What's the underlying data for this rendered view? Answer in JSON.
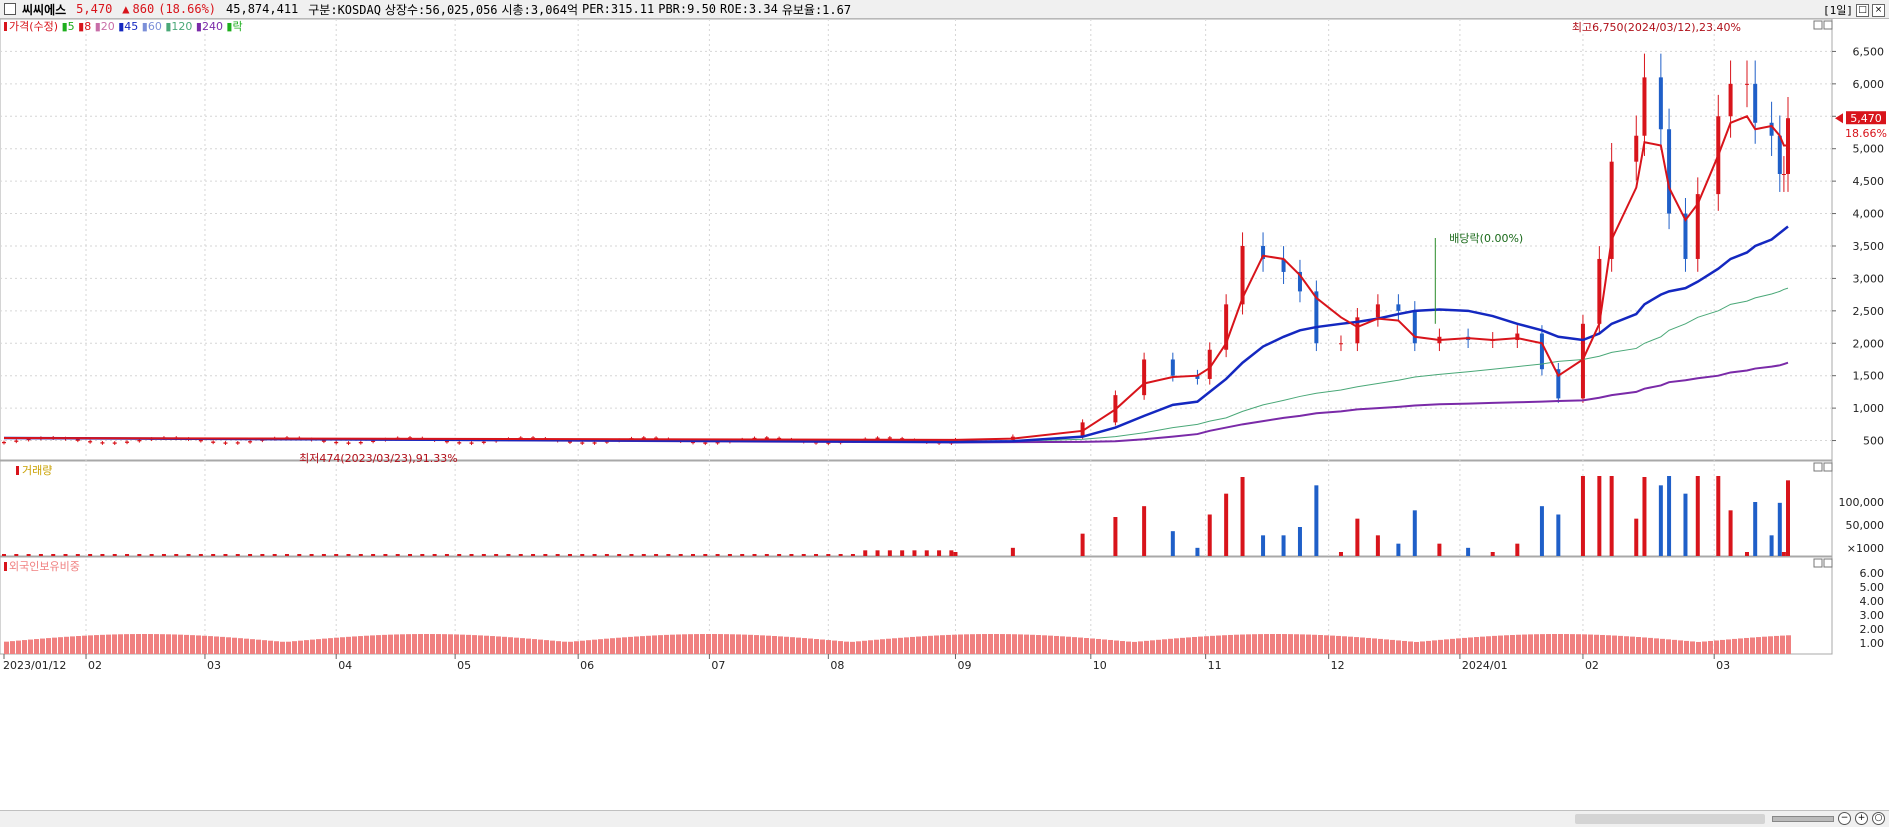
{
  "header": {
    "stock_name": "씨씨에스",
    "price": "5,470",
    "change_arrow": "▲",
    "change": "860",
    "change_pct": "(18.66%)",
    "volume": "45,874,411",
    "market": "구분:KOSDAQ",
    "listed_shares": "상장수:56,025,056",
    "market_cap": "시총:3,064억",
    "per": "PER:315.11",
    "pbr": "PBR:9.50",
    "roe": "ROE:3.34",
    "float_ratio": "유보율:1.67",
    "period_label": "[1일]"
  },
  "colors": {
    "up": "#d8141b",
    "down": "#1f5fc8",
    "ma5": "#1dae1d",
    "ma8": "#d8141b",
    "ma20": "#c86ea8",
    "ma45": "#1428c0",
    "ma60": "#7b8fd8",
    "ma120": "#4aa878",
    "ma240": "#7a2aa8",
    "foreign": "#f08080",
    "grid": "#d6d6d6"
  },
  "chart_data": [
    {
      "type": "candlestick",
      "title": "가격(수정)",
      "legend": [
        {
          "name": "가격(수정)",
          "color": "#d8141b"
        },
        {
          "name": "5",
          "color": "#1dae1d"
        },
        {
          "name": "8",
          "color": "#d8141b"
        },
        {
          "name": "20",
          "color": "#c86ea8"
        },
        {
          "name": "45",
          "color": "#1428c0"
        },
        {
          "name": "60",
          "color": "#7b8fd8"
        },
        {
          "name": "120",
          "color": "#4aa878"
        },
        {
          "name": "240",
          "color": "#7a2aa8"
        },
        {
          "name": "락",
          "color": "#1dae1d"
        }
      ],
      "ylim": [
        200,
        7000
      ],
      "yticks": [
        500,
        1000,
        1500,
        2000,
        2500,
        3000,
        3500,
        4000,
        4500,
        5000,
        5500,
        6000,
        6500
      ],
      "ytick_labels": [
        "500",
        "1,000",
        "1,500",
        "2,000",
        "2,500",
        "3,000",
        "3,500",
        "4,000",
        "4,500",
        "5,000",
        "5,500",
        "6,000",
        "6,500"
      ],
      "current_price": 5470,
      "current_price_label": "5,470",
      "current_change_label": "18.66%",
      "x": [
        "2023-09-01",
        "2023-09-15",
        "2023-10-02",
        "2023-10-10",
        "2023-10-17",
        "2023-10-24",
        "2023-10-30",
        "2023-11-02",
        "2023-11-06",
        "2023-11-10",
        "2023-11-15",
        "2023-11-20",
        "2023-11-24",
        "2023-11-28",
        "2023-12-04",
        "2023-12-08",
        "2023-12-13",
        "2023-12-18",
        "2023-12-22",
        "2023-12-28",
        "2024-01-04",
        "2024-01-10",
        "2024-01-16",
        "2024-01-22",
        "2024-01-26",
        "2024-02-01",
        "2024-02-05",
        "2024-02-08",
        "2024-02-14",
        "2024-02-16",
        "2024-02-20",
        "2024-02-22",
        "2024-02-26",
        "2024-02-29",
        "2024-03-05",
        "2024-03-08",
        "2024-03-12",
        "2024-03-14",
        "2024-03-18",
        "2024-03-20",
        "2024-03-21",
        "2024-03-22"
      ],
      "close": [
        510,
        560,
        780,
        1200,
        1750,
        1500,
        1450,
        1900,
        2600,
        3500,
        3300,
        3100,
        2800,
        2000,
        2000,
        2400,
        2600,
        2500,
        2000,
        2100,
        2050,
        2050,
        2150,
        1600,
        1150,
        2300,
        3300,
        4800,
        5200,
        6100,
        5300,
        4000,
        3300,
        4300,
        5500,
        6000,
        6000,
        5400,
        5200,
        4610,
        4610,
        5470
      ],
      "ma8": [
        510,
        530,
        650,
        980,
        1380,
        1480,
        1500,
        1620,
        2000,
        2700,
        3350,
        3300,
        3050,
        2700,
        2400,
        2250,
        2380,
        2350,
        2100,
        2050,
        2080,
        2050,
        2080,
        2000,
        1500,
        1750,
        2300,
        3600,
        4400,
        5100,
        5050,
        4400,
        3900,
        4150,
        4900,
        5400,
        5500,
        5300,
        5350,
        5200,
        5050,
        5050
      ],
      "ma45": [
        480,
        490,
        560,
        700,
        880,
        1050,
        1100,
        1250,
        1450,
        1700,
        1950,
        2100,
        2200,
        2250,
        2300,
        2330,
        2380,
        2450,
        2500,
        2520,
        2500,
        2420,
        2300,
        2200,
        2100,
        2050,
        2150,
        2300,
        2450,
        2600,
        2750,
        2800,
        2850,
        2950,
        3150,
        3300,
        3400,
        3500,
        3600,
        3700,
        3750,
        3800
      ],
      "ma120": [
        480,
        490,
        520,
        560,
        620,
        700,
        750,
        800,
        850,
        950,
        1050,
        1120,
        1180,
        1230,
        1280,
        1330,
        1380,
        1430,
        1480,
        1520,
        1560,
        1600,
        1640,
        1680,
        1720,
        1750,
        1800,
        1860,
        1920,
        2000,
        2100,
        2200,
        2300,
        2400,
        2500,
        2600,
        2650,
        2700,
        2760,
        2800,
        2830,
        2850
      ],
      "ma240": [
        470,
        475,
        480,
        490,
        520,
        560,
        600,
        650,
        700,
        750,
        800,
        850,
        880,
        920,
        950,
        980,
        1000,
        1020,
        1040,
        1060,
        1070,
        1080,
        1090,
        1100,
        1110,
        1120,
        1160,
        1200,
        1250,
        1300,
        1350,
        1400,
        1430,
        1460,
        1500,
        1550,
        1580,
        1610,
        1640,
        1660,
        1680,
        1700
      ],
      "annotations": [
        {
          "text": "최고6,750(2024/03/12),23.40%",
          "x": "2024-03-12",
          "y": 6750
        },
        {
          "text": "최저474(2023/03/23),91.33%",
          "x": "2023-03-23",
          "y": 474
        },
        {
          "text": "배당락(0.00%)",
          "x": "2023-12-27",
          "y": 2300
        }
      ]
    },
    {
      "type": "bar",
      "title": "거래량",
      "ytick_labels": [
        "100,000",
        "50,000",
        "×1000"
      ],
      "yticks": [
        100000,
        50000,
        0
      ]
    },
    {
      "type": "bar",
      "title": "외국인보유비중",
      "ytick_labels": [
        "6.00",
        "5.00",
        "4.00",
        "3.00",
        "2.00",
        "1.00"
      ],
      "yticks": [
        6,
        5,
        4,
        3,
        2,
        1
      ]
    }
  ],
  "x_axis": {
    "labels": [
      "2023/01/12",
      "02",
      "03",
      "04",
      "05",
      "06",
      "07",
      "08",
      "09",
      "10",
      "11",
      "12",
      "2024/01",
      "02",
      "03"
    ]
  }
}
